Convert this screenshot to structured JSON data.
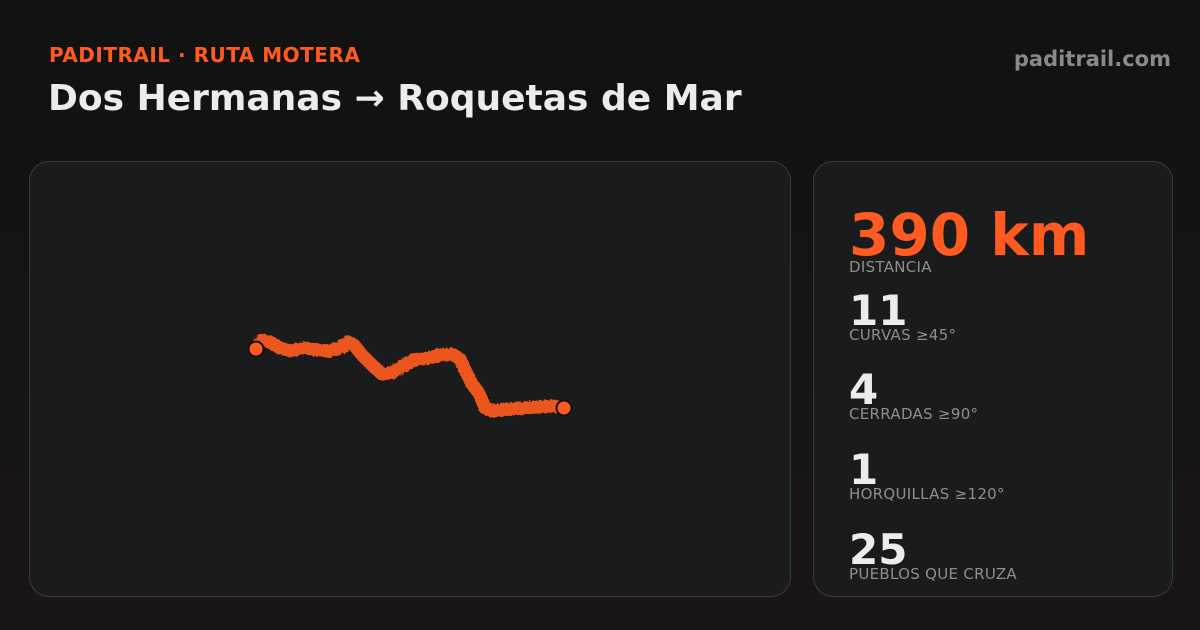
{
  "header": {
    "kicker": "PADITRAIL · RUTA MOTERA",
    "title": "Dos Hermanas → Roquetas de Mar",
    "site": "paditrail.com"
  },
  "map": {
    "route_color": "#ff5a1f",
    "marker_color": "#ff5a1f",
    "start_marker": "start-pin",
    "end_marker": "end-pin"
  },
  "stats": {
    "distance": {
      "value": "390 km",
      "label": "DISTANCIA"
    },
    "curves": {
      "value": "11",
      "label": "CURVAS ≥45°"
    },
    "sharp": {
      "value": "4",
      "label": "CERRADAS ≥90°"
    },
    "hairpins": {
      "value": "1",
      "label": "HORQUILLAS ≥120°"
    },
    "towns": {
      "value": "25",
      "label": "PUEBLOS QUE CRUZA"
    }
  },
  "colors": {
    "accent": "#ff5a1f",
    "background": "#131314",
    "panel": "#1a1b1d"
  }
}
